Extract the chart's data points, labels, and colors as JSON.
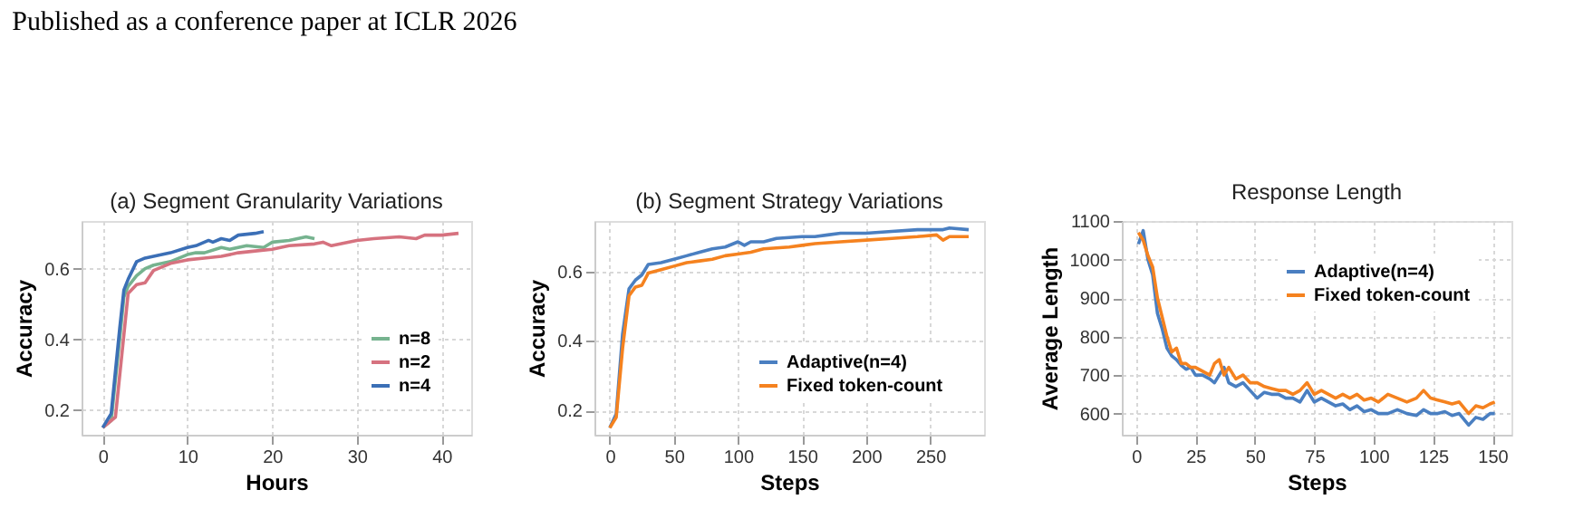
{
  "chart_data": [
    {
      "type": "line",
      "title": "(a) Segment Granularity Variations",
      "xlabel": "Hours",
      "ylabel": "Accuracy",
      "annotations": [
        "Published as a conference paper at ICLR 2026"
      ],
      "xlim": [
        -2.5,
        43.5
      ],
      "xticks": [
        0,
        10,
        20,
        30,
        40
      ],
      "ylim": [
        0.13,
        0.735
      ],
      "yticks": [
        0.2,
        0.4,
        0.6
      ],
      "grid": true,
      "legend": "bottom right",
      "line_style": "solid",
      "marker": "none",
      "series": [
        {
          "name": "n=8",
          "color": "#76b38f",
          "x": [
            0,
            1,
            2,
            2.5,
            3,
            4,
            5,
            6,
            7,
            8,
            10,
            11,
            12,
            14,
            15,
            17,
            19,
            20,
            22,
            24,
            25
          ],
          "values": [
            0.15,
            0.17,
            0.4,
            0.52,
            0.55,
            0.58,
            0.6,
            0.61,
            0.615,
            0.62,
            0.64,
            0.645,
            0.645,
            0.66,
            0.655,
            0.665,
            0.66,
            0.675,
            0.68,
            0.69,
            0.685
          ]
        },
        {
          "name": "n=2",
          "color": "#d6727f",
          "x": [
            0,
            1.5,
            3,
            4,
            5,
            6,
            8,
            10,
            12,
            14,
            16,
            18,
            20,
            22,
            25,
            26,
            27,
            30,
            32,
            35,
            37,
            38,
            40,
            42
          ],
          "values": [
            0.15,
            0.18,
            0.53,
            0.555,
            0.56,
            0.595,
            0.615,
            0.625,
            0.63,
            0.635,
            0.645,
            0.65,
            0.655,
            0.665,
            0.67,
            0.675,
            0.665,
            0.68,
            0.685,
            0.69,
            0.685,
            0.695,
            0.695,
            0.7
          ]
        },
        {
          "name": "n=4",
          "color": "#3b6fb6",
          "x": [
            0,
            1,
            2,
            2.5,
            3,
            4,
            5,
            6,
            8,
            10,
            11,
            12,
            12.5,
            13,
            14,
            15,
            16,
            18,
            19
          ],
          "values": [
            0.15,
            0.19,
            0.43,
            0.54,
            0.57,
            0.62,
            0.63,
            0.635,
            0.645,
            0.66,
            0.665,
            0.675,
            0.68,
            0.675,
            0.685,
            0.68,
            0.695,
            0.7,
            0.705
          ]
        }
      ]
    },
    {
      "type": "line",
      "title": "(b) Segment Strategy Variations",
      "xlabel": "Steps",
      "ylabel": "Accuracy",
      "xlim": [
        -12,
        292
      ],
      "xticks": [
        0,
        50,
        100,
        150,
        200,
        250
      ],
      "ylim": [
        0.13,
        0.745
      ],
      "yticks": [
        0.2,
        0.4,
        0.6
      ],
      "grid": true,
      "legend": "bottom right",
      "line_style": "solid",
      "marker": "none",
      "series": [
        {
          "name": "Adaptive(n=4)",
          "color": "#4a7fc1",
          "x": [
            0,
            5,
            10,
            15,
            20,
            25,
            30,
            40,
            50,
            60,
            70,
            80,
            90,
            100,
            105,
            110,
            120,
            130,
            150,
            160,
            170,
            180,
            200,
            220,
            240,
            260,
            265,
            280
          ],
          "values": [
            0.15,
            0.19,
            0.42,
            0.55,
            0.575,
            0.59,
            0.62,
            0.625,
            0.635,
            0.645,
            0.655,
            0.665,
            0.67,
            0.685,
            0.675,
            0.685,
            0.685,
            0.695,
            0.7,
            0.7,
            0.705,
            0.71,
            0.71,
            0.715,
            0.72,
            0.72,
            0.725,
            0.72
          ]
        },
        {
          "name": "Fixed token-count",
          "color": "#f5821f",
          "x": [
            0,
            5,
            10,
            15,
            20,
            25,
            30,
            40,
            50,
            60,
            70,
            80,
            90,
            100,
            110,
            120,
            140,
            150,
            160,
            180,
            200,
            220,
            240,
            255,
            260,
            265,
            280
          ],
          "values": [
            0.15,
            0.18,
            0.38,
            0.53,
            0.555,
            0.56,
            0.595,
            0.605,
            0.615,
            0.625,
            0.63,
            0.635,
            0.645,
            0.65,
            0.655,
            0.665,
            0.67,
            0.675,
            0.68,
            0.685,
            0.69,
            0.695,
            0.7,
            0.705,
            0.69,
            0.7,
            0.7
          ]
        }
      ]
    },
    {
      "type": "line",
      "title": "Response Length",
      "xlabel": "Steps",
      "ylabel": "Average Length",
      "xlim": [
        -6,
        158
      ],
      "xticks": [
        0,
        25,
        50,
        75,
        100,
        125,
        150
      ],
      "ylim": [
        545,
        1100
      ],
      "yticks": [
        600,
        700,
        800,
        900,
        1000,
        1100
      ],
      "grid": true,
      "legend": "top right",
      "line_style": "solid",
      "marker": "none",
      "series": [
        {
          "name": "Adaptive(n=4)",
          "color": "#4a7fc1",
          "x": [
            1,
            3,
            5,
            7,
            9,
            11,
            13,
            15,
            17,
            19,
            21,
            23,
            25,
            28,
            31,
            33,
            35,
            37,
            39,
            42,
            45,
            48,
            51,
            54,
            57,
            60,
            63,
            66,
            69,
            72,
            75,
            78,
            81,
            84,
            87,
            90,
            93,
            96,
            99,
            102,
            106,
            110,
            114,
            118,
            121,
            124,
            127,
            130,
            133,
            136,
            140,
            143,
            146,
            149,
            151
          ],
          "values": [
            1040,
            1075,
            1000,
            960,
            860,
            820,
            770,
            750,
            740,
            725,
            715,
            720,
            700,
            700,
            690,
            680,
            700,
            720,
            680,
            670,
            680,
            660,
            640,
            655,
            650,
            650,
            640,
            640,
            630,
            660,
            630,
            640,
            630,
            620,
            625,
            610,
            620,
            605,
            610,
            600,
            600,
            610,
            600,
            595,
            610,
            600,
            600,
            605,
            595,
            600,
            570,
            590,
            585,
            600,
            600
          ]
        },
        {
          "name": "Fixed token-count",
          "color": "#f5821f",
          "x": [
            1,
            3,
            5,
            7,
            9,
            11,
            13,
            15,
            17,
            19,
            21,
            23,
            25,
            28,
            31,
            33,
            35,
            37,
            39,
            42,
            45,
            48,
            51,
            54,
            57,
            60,
            63,
            66,
            69,
            72,
            75,
            78,
            81,
            84,
            87,
            90,
            93,
            96,
            99,
            102,
            106,
            110,
            114,
            118,
            121,
            124,
            127,
            130,
            133,
            136,
            140,
            143,
            146,
            149,
            151
          ],
          "values": [
            1070,
            1050,
            1010,
            980,
            900,
            850,
            800,
            760,
            770,
            730,
            730,
            720,
            720,
            710,
            700,
            730,
            740,
            700,
            720,
            690,
            700,
            680,
            680,
            670,
            665,
            660,
            660,
            650,
            660,
            680,
            650,
            660,
            650,
            640,
            650,
            640,
            650,
            635,
            640,
            630,
            650,
            640,
            630,
            640,
            660,
            640,
            635,
            630,
            625,
            630,
            600,
            620,
            615,
            625,
            630
          ]
        }
      ]
    }
  ]
}
